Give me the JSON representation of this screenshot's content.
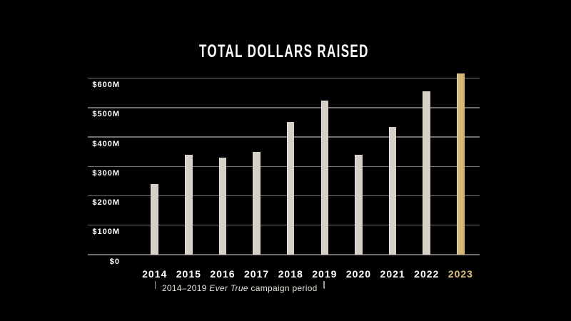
{
  "chart_data": {
    "type": "bar",
    "title": "TOTAL DOLLARS RAISED",
    "xlabel": "",
    "ylabel": "",
    "categories": [
      "2014",
      "2015",
      "2016",
      "2017",
      "2018",
      "2019",
      "2020",
      "2021",
      "2022",
      "2023"
    ],
    "values": [
      240,
      340,
      330,
      350,
      450,
      525,
      340,
      435,
      555,
      615
    ],
    "values_unit": "USD millions (estimated from gridlines)",
    "ylim": [
      0,
      650
    ],
    "ytick_values": [
      600,
      500,
      400,
      300,
      200,
      100,
      0
    ],
    "ytick_labels": [
      "$600M",
      "$500M",
      "$400M",
      "$300M",
      "$200M",
      "$100M",
      "$0"
    ],
    "grid": "horizontal",
    "legend": "none",
    "highlight_category": "2023",
    "annotation": {
      "text_prefix": "2014–2019",
      "text_italic": "Ever True",
      "text_suffix": "campaign period",
      "range_start": "2014",
      "range_end": "2019"
    },
    "colors": {
      "background": "#000000",
      "bar": "#d6cfc7",
      "bar_edge": "#e8e2db",
      "bar_highlight": "#d5b97c",
      "bar_highlight_edge": "#eadcae",
      "gridline": "#6f6f6f",
      "axis_text": "#ffffff",
      "highlight_label": "#dcc080",
      "annotation_text": "#e6e2db",
      "bracket_line": "#9c9c9c"
    }
  }
}
